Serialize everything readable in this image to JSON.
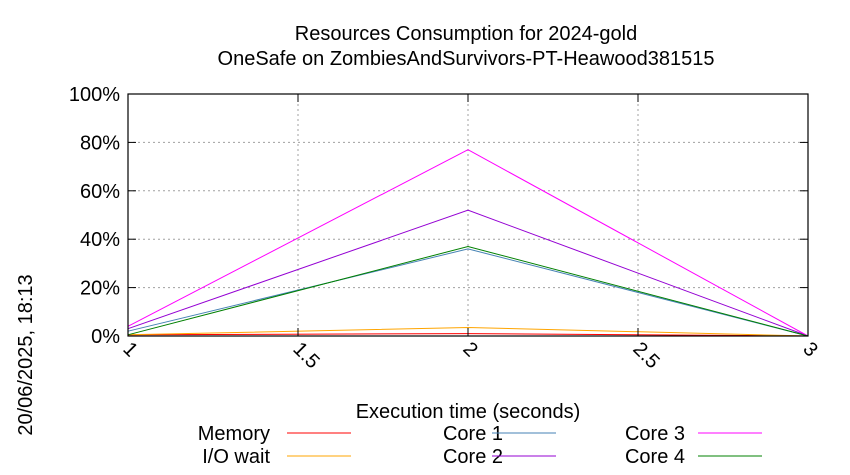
{
  "chart_data": {
    "type": "line",
    "title": "Resources Consumption for 2024-gold",
    "subtitle": "OneSafe on ZombiesAndSurvivors-PT-Heawood381515",
    "xlabel": "Execution time (seconds)",
    "ylabel": "",
    "timestamp": "20/06/2025, 18:13",
    "xlim": [
      1,
      3
    ],
    "ylim": [
      0,
      100
    ],
    "x_ticks": [
      "1",
      "1.5",
      "2",
      "2.5",
      "3"
    ],
    "x_tick_values": [
      1,
      1.5,
      2,
      2.5,
      3
    ],
    "y_ticks": [
      "0%",
      "20%",
      "40%",
      "60%",
      "80%",
      "100%"
    ],
    "y_tick_values": [
      0,
      20,
      40,
      60,
      80,
      100
    ],
    "grid": true,
    "legend_position": "bottom",
    "series": [
      {
        "name": "Memory",
        "color": "#ff0000",
        "x": [
          1,
          2,
          3
        ],
        "y": [
          0.5,
          1,
          0
        ]
      },
      {
        "name": "I/O wait",
        "color": "#ffa500",
        "x": [
          1,
          2,
          3
        ],
        "y": [
          0.5,
          3.5,
          0
        ]
      },
      {
        "name": "Core 1",
        "color": "#4682b4",
        "x": [
          1,
          2,
          3
        ],
        "y": [
          2,
          36,
          0
        ]
      },
      {
        "name": "Core 2",
        "color": "#9400d3",
        "x": [
          1,
          2,
          3
        ],
        "y": [
          3,
          52,
          0
        ]
      },
      {
        "name": "Core 3",
        "color": "#ff00ff",
        "x": [
          1,
          2,
          3
        ],
        "y": [
          4,
          77,
          0
        ]
      },
      {
        "name": "Core 4",
        "color": "#008000",
        "x": [
          1,
          2,
          3
        ],
        "y": [
          0.5,
          37,
          0
        ]
      }
    ]
  }
}
